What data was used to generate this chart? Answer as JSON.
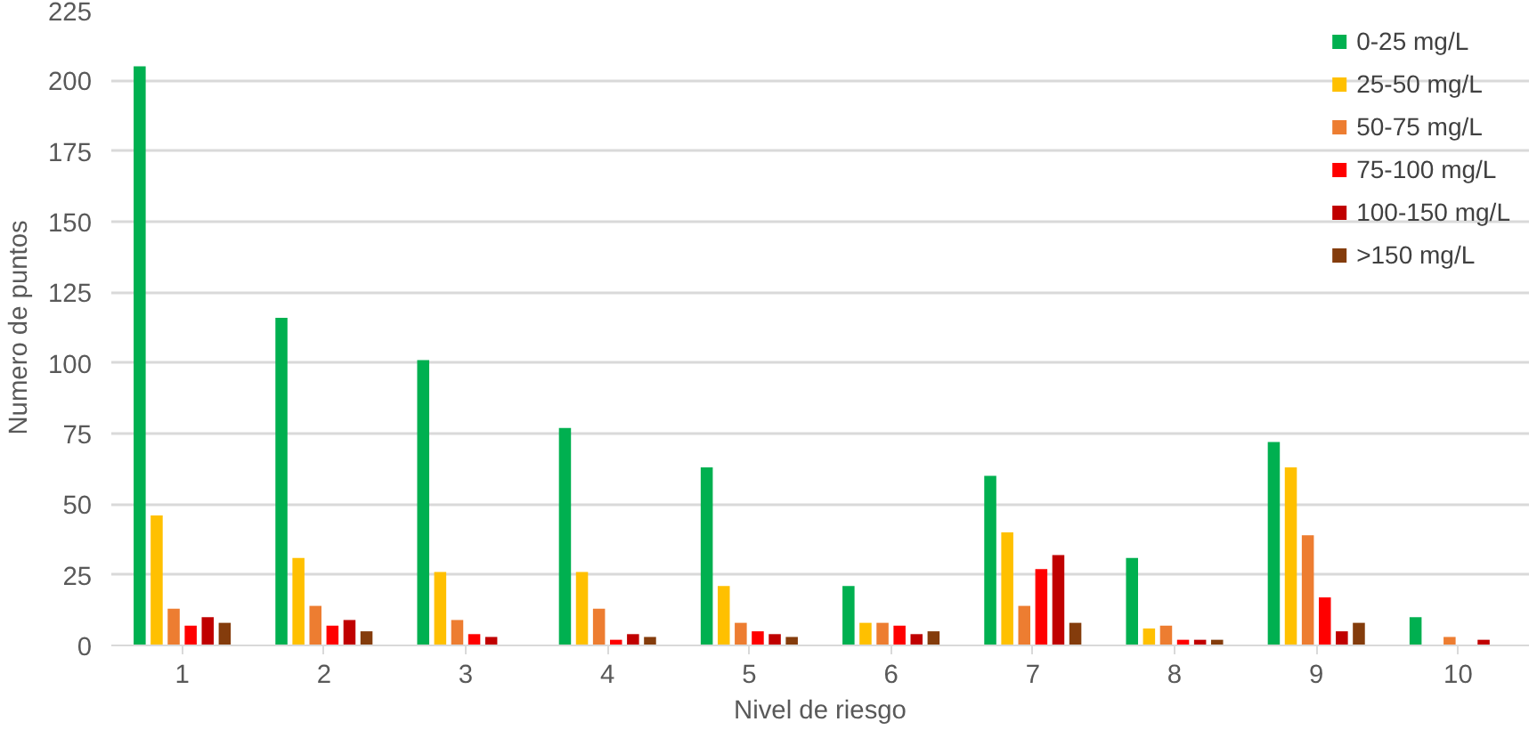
{
  "chart_data": {
    "type": "bar",
    "xlabel": "Nivel de riesgo",
    "ylabel": "Numero de puntos",
    "categories": [
      "1",
      "2",
      "3",
      "4",
      "5",
      "6",
      "7",
      "8",
      "9",
      "10"
    ],
    "series": [
      {
        "name": "0-25 mg/L",
        "color": "#00b050",
        "values": [
          205,
          116,
          101,
          77,
          63,
          21,
          60,
          31,
          72,
          10
        ]
      },
      {
        "name": "25-50 mg/L",
        "color": "#ffc000",
        "values": [
          46,
          31,
          26,
          26,
          21,
          8,
          40,
          6,
          63,
          0
        ]
      },
      {
        "name": "50-75 mg/L",
        "color": "#ed7d31",
        "values": [
          13,
          14,
          9,
          13,
          8,
          8,
          14,
          7,
          39,
          3
        ]
      },
      {
        "name": "75-100 mg/L",
        "color": "#ff0000",
        "values": [
          7,
          7,
          4,
          2,
          5,
          7,
          27,
          2,
          17,
          0
        ]
      },
      {
        "name": "100-150 mg/L",
        "color": "#c00000",
        "values": [
          10,
          9,
          3,
          4,
          4,
          4,
          32,
          2,
          5,
          2
        ]
      },
      {
        "name": ">150 mg/L",
        "color": "#843c0c",
        "values": [
          8,
          5,
          0,
          3,
          3,
          5,
          8,
          2,
          8,
          0
        ]
      }
    ],
    "ylim": [
      0,
      225
    ],
    "yticks": [
      0,
      25,
      50,
      75,
      100,
      125,
      150,
      175,
      200,
      225
    ],
    "grid": "y",
    "legend": "top right"
  }
}
